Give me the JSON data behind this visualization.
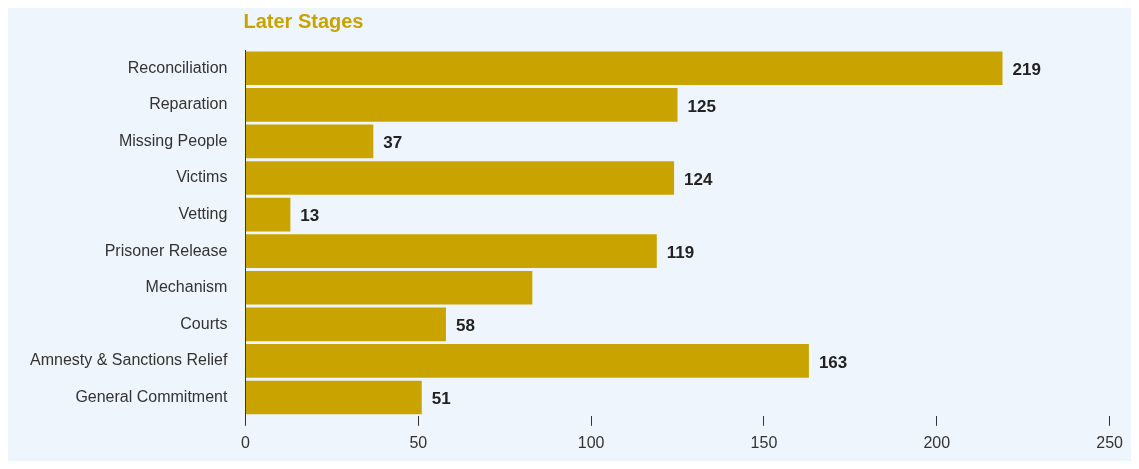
{
  "chart_data": {
    "type": "bar",
    "orientation": "horizontal",
    "title": "Later Stages",
    "categories": [
      "Reconciliation",
      "Reparation",
      "Missing People",
      "Victims",
      "Vetting",
      "Prisoner Release",
      "Mechanism",
      "Courts",
      "Amnesty & Sanctions Relief",
      "General Commitment"
    ],
    "values": [
      219,
      125,
      37,
      124,
      13,
      119,
      83,
      58,
      163,
      51
    ],
    "value_labels": [
      "219",
      "125",
      "37",
      "124",
      "13",
      "119",
      null,
      "58",
      "163",
      "51"
    ],
    "color": "#c9a300",
    "xlim": [
      0,
      250
    ],
    "xticks": [
      0,
      50,
      100,
      150,
      200,
      250
    ],
    "grid": false,
    "legend": false
  }
}
